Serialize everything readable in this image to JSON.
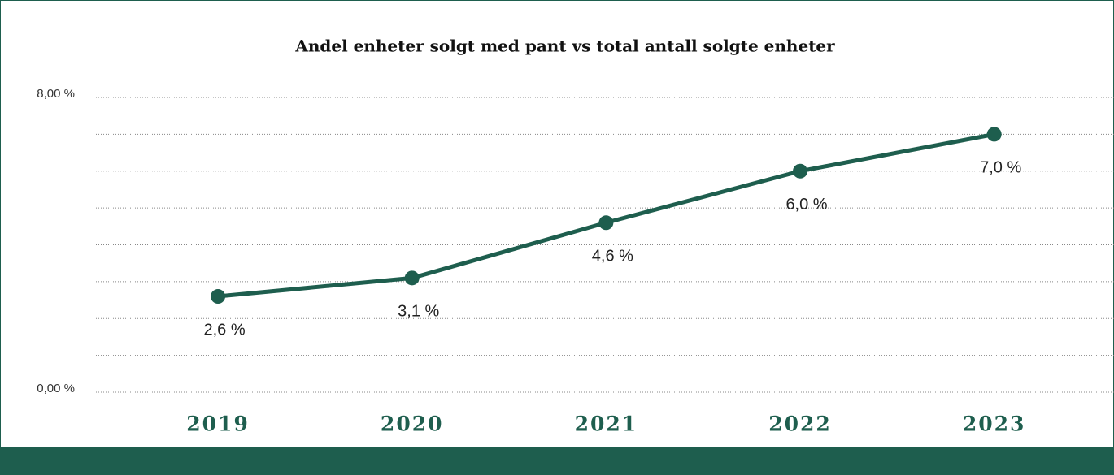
{
  "chart_data": {
    "type": "line",
    "title": "Andel enheter solgt med pant vs total antall solgte enheter",
    "categories": [
      "2019",
      "2020",
      "2021",
      "2022",
      "2023"
    ],
    "values": [
      2.6,
      3.1,
      4.6,
      6.0,
      7.0
    ],
    "value_labels": [
      "2,6 %",
      "3,1 %",
      "4,6 %",
      "6,0 %",
      "7,0 %"
    ],
    "color": "#1e5e4e",
    "ylim": [
      0,
      8
    ],
    "yticks": [
      {
        "value": 0,
        "label": "0,00 %"
      },
      {
        "value": 8,
        "label": "8,00 %"
      }
    ],
    "minor_yticks": [
      1,
      2,
      3,
      4,
      5,
      6,
      7
    ],
    "grid": true
  }
}
